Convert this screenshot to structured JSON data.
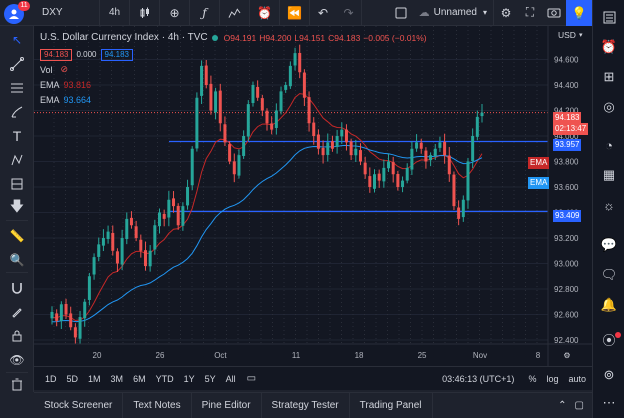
{
  "topbar": {
    "avatar_badge": "11",
    "symbol": "DXY",
    "interval": "4h",
    "layout_name": "Unnamed",
    "currency": "USD"
  },
  "legend": {
    "title": "U.S. Dollar Currency Index · 4h · TVC",
    "open": "O94.191",
    "high": "H94.200",
    "low": "L94.151",
    "close": "C94.183",
    "change": "−0.005 (−0.01%)",
    "bid": "94.183",
    "spread": "0.000",
    "ask": "94.183",
    "vol_label": "Vol",
    "ema1_label": "EMA",
    "ema1_value": "93.816",
    "ema2_label": "EMA",
    "ema2_value": "93.664"
  },
  "price_axis": {
    "ticks": [
      "94.600",
      "94.400",
      "94.200",
      "94.000",
      "93.800",
      "93.600",
      "93.400",
      "93.200",
      "93.000",
      "92.800",
      "92.600",
      "92.400"
    ],
    "last_price": "94.183",
    "countdown": "02:13:47",
    "level_high": "93.957",
    "level_low": "93.409",
    "ema1_tag": "EMA",
    "ema2_tag": "EMA"
  },
  "time_axis": {
    "ticks": [
      "20",
      "26",
      "Oct",
      "11",
      "18",
      "25",
      "Nov",
      "8"
    ]
  },
  "range_bar": {
    "ranges": [
      "1D",
      "5D",
      "1M",
      "3M",
      "6M",
      "YTD",
      "1Y",
      "5Y",
      "All"
    ],
    "clock": "03:46:13 (UTC+1)",
    "percent": "%",
    "log": "log",
    "auto": "auto"
  },
  "panels": {
    "items": [
      "Stock Screener",
      "Text Notes",
      "Pine Editor",
      "Strategy Tester",
      "Trading Panel"
    ]
  },
  "colors": {
    "up": "#26a69a",
    "down": "#ef5350",
    "ema1": "#c62828",
    "ema2": "#2196f3",
    "hline": "#2962ff"
  },
  "chart_data": {
    "type": "candlestick",
    "symbol": "DXY",
    "interval": "4h",
    "ylim": [
      92.4,
      94.8
    ],
    "x_ticks": [
      "20",
      "26",
      "Oct",
      "11",
      "18",
      "25",
      "Nov",
      "8"
    ],
    "close_path": [
      92.62,
      92.55,
      92.68,
      92.6,
      92.5,
      92.42,
      92.58,
      92.7,
      92.9,
      93.05,
      93.15,
      93.2,
      93.25,
      93.1,
      93.0,
      93.2,
      93.35,
      93.3,
      93.2,
      93.1,
      92.98,
      93.1,
      93.3,
      93.4,
      93.35,
      93.5,
      93.45,
      93.3,
      93.45,
      93.6,
      93.9,
      94.3,
      94.55,
      94.4,
      94.2,
      94.35,
      94.1,
      93.95,
      93.8,
      93.7,
      93.85,
      94.0,
      94.25,
      94.4,
      94.3,
      94.2,
      94.1,
      94.05,
      94.2,
      94.35,
      94.4,
      94.55,
      94.65,
      94.5,
      94.3,
      94.1,
      94.0,
      93.9,
      93.85,
      93.95,
      93.9,
      94.0,
      94.05,
      93.95,
      93.85,
      93.9,
      93.8,
      93.7,
      93.6,
      93.7,
      93.65,
      93.75,
      93.8,
      93.7,
      93.6,
      93.65,
      93.75,
      93.9,
      93.95,
      93.9,
      93.8,
      93.85,
      93.9,
      93.95,
      93.85,
      93.7,
      93.45,
      93.35,
      93.5,
      93.8,
      94.0,
      94.15,
      94.183
    ],
    "horizontal_levels": [
      93.957,
      93.409
    ],
    "ema_fast_last": 93.816,
    "ema_slow_last": 93.664
  }
}
